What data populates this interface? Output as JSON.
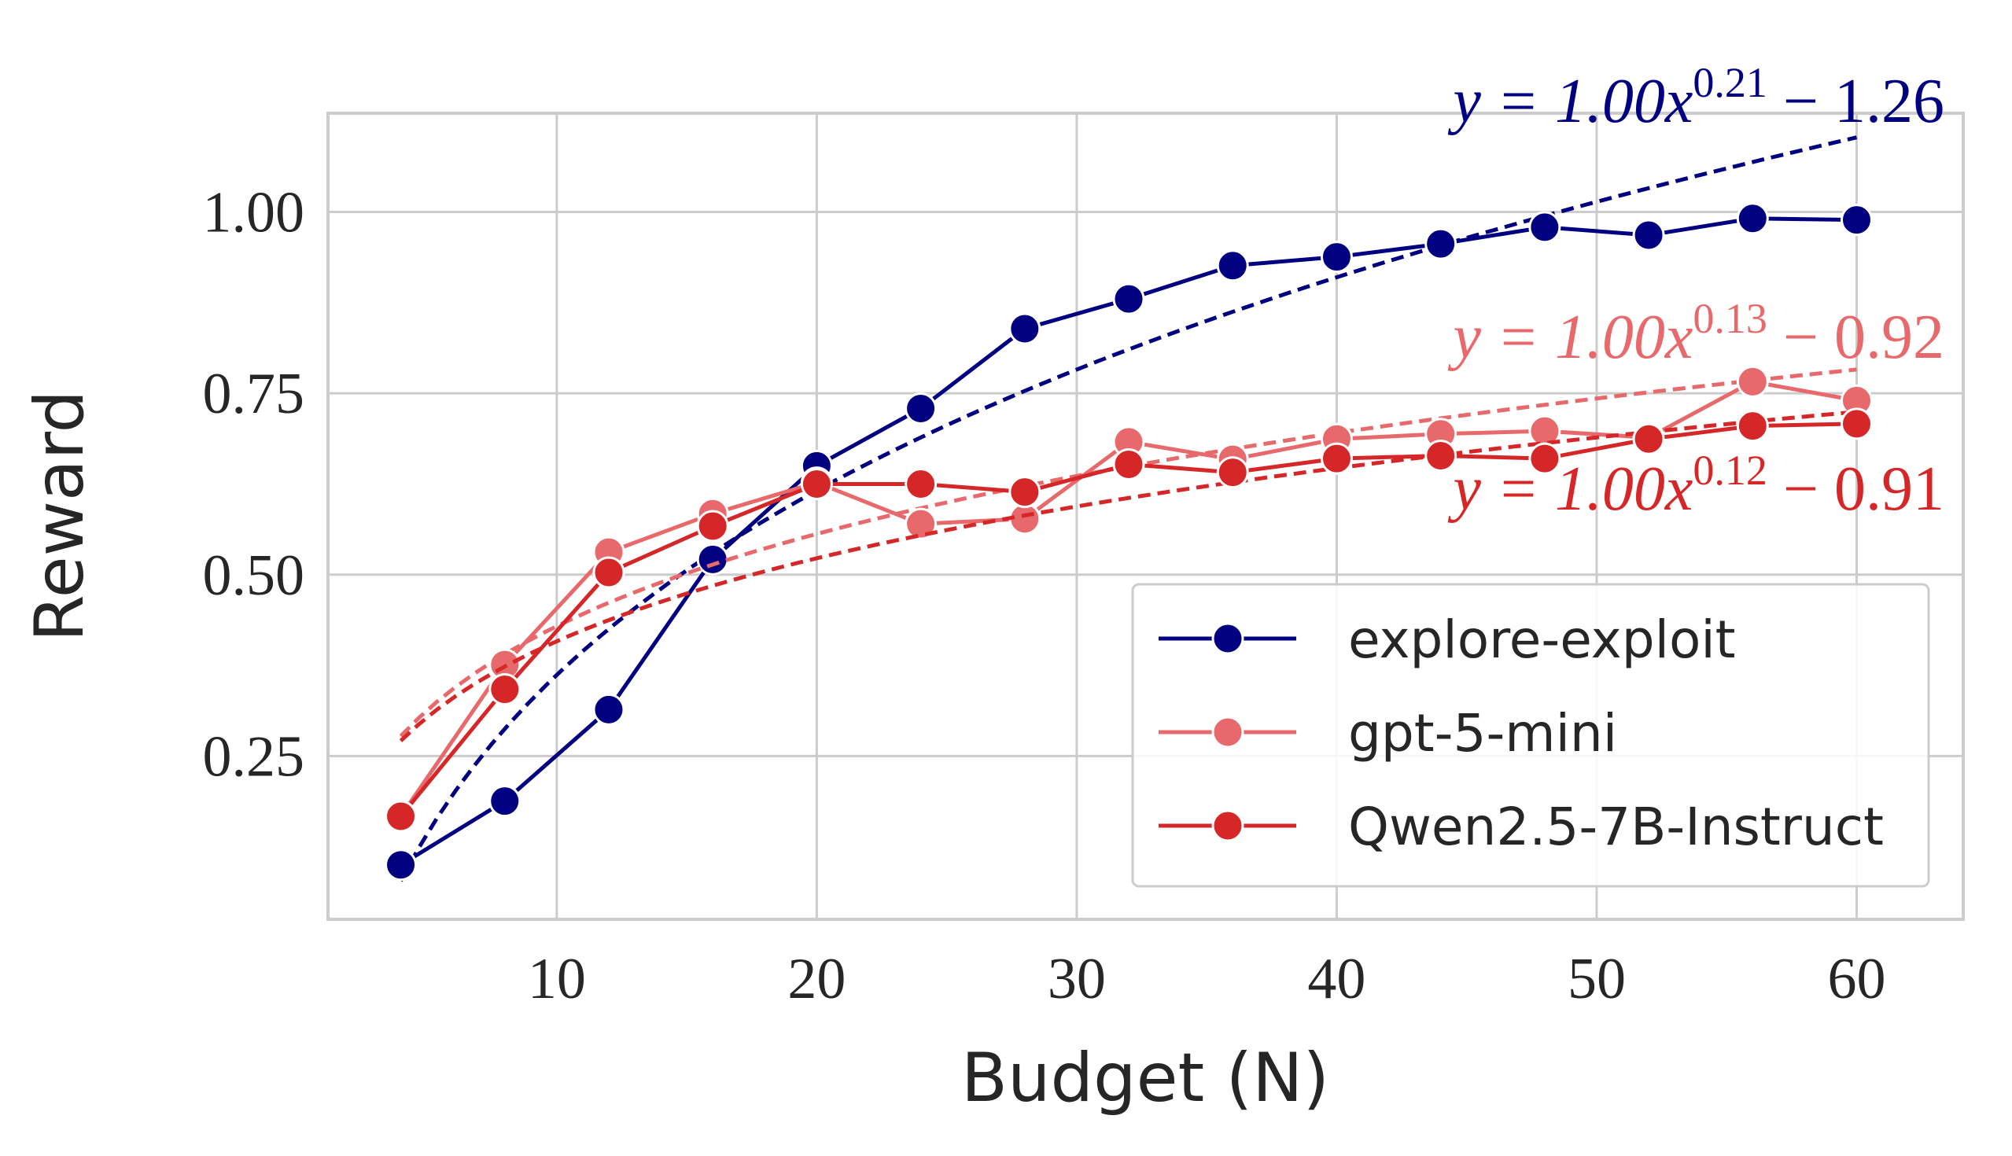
{
  "chart_data": {
    "type": "line",
    "xlabel": "Budget (N)",
    "ylabel": "Reward",
    "x": [
      4,
      8,
      12,
      16,
      20,
      24,
      28,
      32,
      36,
      40,
      44,
      48,
      52,
      56,
      60
    ],
    "xlim": [
      1.2,
      64.1
    ],
    "xticks": [
      10,
      20,
      30,
      40,
      50,
      60
    ],
    "ylim": [
      0.025,
      1.136
    ],
    "yticks": [
      {
        "value": 0.25,
        "label": "0.25"
      },
      {
        "value": 0.5,
        "label": "0.50"
      },
      {
        "value": 0.75,
        "label": "0.75"
      },
      {
        "value": 1.0,
        "label": "1.00"
      }
    ],
    "grid": true,
    "legend": "lower right",
    "series": [
      {
        "name": "explore-exploit",
        "color": "#000080",
        "values": [
          0.1,
          0.188,
          0.314,
          0.521,
          0.65,
          0.729,
          0.839,
          0.88,
          0.926,
          0.938,
          0.956,
          0.979,
          0.968,
          0.991,
          0.989
        ],
        "fit": {
          "a": 1.0,
          "b": 0.21,
          "c": -1.26,
          "label": [
            "y = 1.00x",
            "0.21",
            " − 1.26"
          ]
        }
      },
      {
        "name": "gpt-5-mini",
        "color": "#e8696b",
        "values": [
          0.167,
          0.376,
          0.531,
          0.584,
          0.627,
          0.57,
          0.577,
          0.683,
          0.659,
          0.687,
          0.694,
          0.698,
          0.689,
          0.766,
          0.74
        ],
        "fit": {
          "a": 1.0,
          "b": 0.13,
          "c": -0.92,
          "label": [
            "y = 1.00x",
            "0.13",
            " − 0.92"
          ]
        }
      },
      {
        "name": "Qwen2.5-7B-Instruct",
        "color": "#d62728",
        "values": [
          0.167,
          0.342,
          0.503,
          0.567,
          0.625,
          0.625,
          0.614,
          0.652,
          0.641,
          0.66,
          0.664,
          0.66,
          0.687,
          0.705,
          0.708
        ],
        "fit": {
          "a": 1.0,
          "b": 0.12,
          "c": -0.91,
          "label": [
            "y = 1.00x",
            "0.12",
            " − 0.91"
          ]
        }
      }
    ]
  }
}
